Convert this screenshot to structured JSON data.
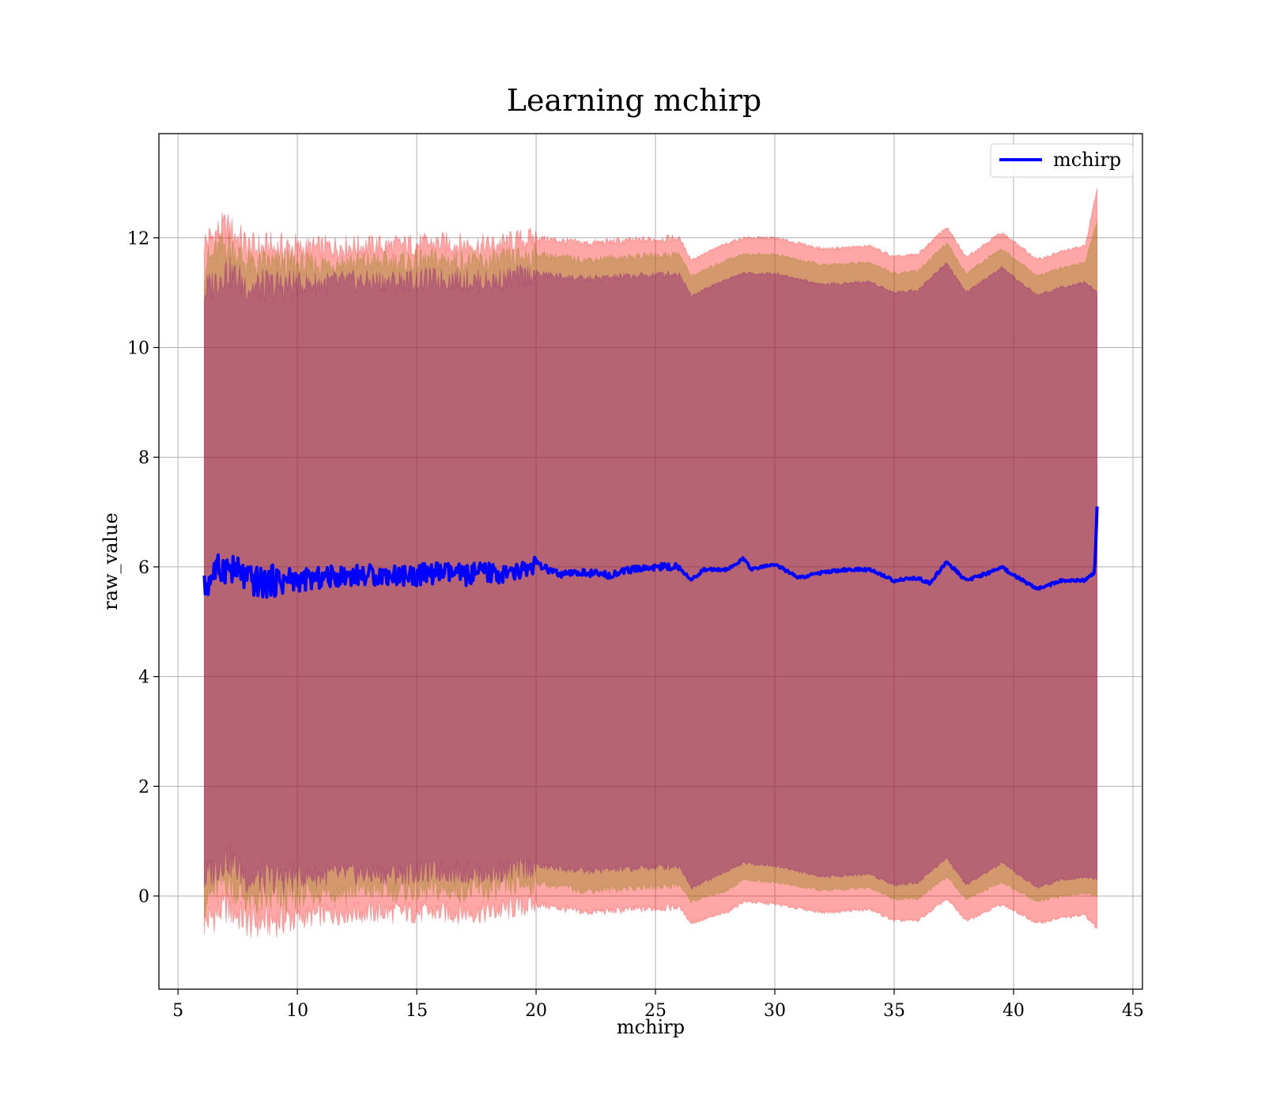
{
  "chart_data": {
    "type": "line",
    "title": "Learning mchirp",
    "xlabel": "mchirp",
    "ylabel": "raw_value",
    "xlim": [
      4.2,
      45.4
    ],
    "ylim": [
      -1.7,
      13.9
    ],
    "xticks": [
      5,
      10,
      15,
      20,
      25,
      30,
      35,
      40,
      45
    ],
    "yticks": [
      0,
      2,
      4,
      6,
      8,
      10,
      12
    ],
    "grid": true,
    "legend_position": "top-right",
    "x_range": [
      6.1,
      43.5
    ],
    "series": [
      {
        "name": "mchirp",
        "kind": "line",
        "color": "#0000ff",
        "x": [
          6.1,
          6.5,
          7.0,
          7.5,
          8.0,
          8.5,
          9.0,
          10.0,
          11.0,
          12.0,
          13.0,
          14.0,
          15.0,
          16.0,
          17.0,
          18.0,
          19.0,
          20.0,
          21.0,
          22.0,
          23.0,
          24.0,
          25.0,
          26.0,
          26.5,
          27.0,
          28.0,
          28.7,
          29.0,
          30.0,
          31.0,
          32.0,
          33.0,
          34.0,
          35.0,
          36.0,
          36.5,
          37.2,
          38.0,
          39.0,
          39.5,
          40.0,
          41.0,
          42.0,
          43.0,
          43.4,
          43.5
        ],
        "values": [
          5.6,
          5.9,
          6.0,
          5.9,
          5.75,
          5.7,
          5.75,
          5.75,
          5.8,
          5.85,
          5.85,
          5.85,
          5.85,
          5.9,
          5.85,
          5.9,
          5.85,
          6.05,
          5.85,
          5.9,
          5.85,
          5.95,
          6.0,
          6.0,
          5.75,
          5.95,
          5.95,
          6.15,
          5.95,
          6.05,
          5.8,
          5.9,
          5.95,
          5.95,
          5.75,
          5.8,
          5.7,
          6.1,
          5.75,
          5.9,
          6.0,
          5.85,
          5.6,
          5.75,
          5.75,
          5.9,
          7.1
        ]
      },
      {
        "name": "",
        "kind": "band",
        "color": "#ff0000",
        "x": [
          6.1,
          7.0,
          8.0,
          10.0,
          12.0,
          14.0,
          16.0,
          18.0,
          20.0,
          22.0,
          24.0,
          26.0,
          26.5,
          28.0,
          28.7,
          30.0,
          32.0,
          34.0,
          35.0,
          36.0,
          37.2,
          38.0,
          39.5,
          41.0,
          42.0,
          43.0,
          43.5
        ],
        "upper": [
          11.9,
          12.2,
          11.8,
          11.8,
          11.85,
          11.85,
          11.9,
          11.85,
          12.0,
          11.9,
          11.95,
          12.0,
          11.6,
          11.9,
          12.0,
          12.0,
          11.8,
          11.85,
          11.65,
          11.7,
          12.2,
          11.65,
          12.1,
          11.6,
          11.75,
          11.85,
          12.9
        ],
        "lower": [
          -0.5,
          -0.2,
          -0.5,
          -0.4,
          -0.3,
          -0.3,
          -0.3,
          -0.3,
          -0.15,
          -0.3,
          -0.25,
          -0.2,
          -0.5,
          -0.3,
          -0.1,
          -0.15,
          -0.3,
          -0.25,
          -0.45,
          -0.45,
          -0.05,
          -0.45,
          -0.15,
          -0.5,
          -0.4,
          -0.35,
          -0.6
        ]
      },
      {
        "name": "",
        "kind": "band",
        "color": "#808000",
        "x": [
          6.1,
          7.0,
          8.0,
          10.0,
          12.0,
          14.0,
          16.0,
          18.0,
          20.0,
          22.0,
          24.0,
          26.0,
          26.5,
          28.0,
          28.7,
          30.0,
          32.0,
          34.0,
          35.0,
          36.0,
          37.2,
          38.0,
          39.5,
          41.0,
          42.0,
          43.0,
          43.5
        ],
        "upper": [
          11.5,
          11.9,
          11.5,
          11.5,
          11.55,
          11.55,
          11.6,
          11.55,
          11.7,
          11.6,
          11.65,
          11.7,
          11.3,
          11.6,
          11.7,
          11.7,
          11.5,
          11.55,
          11.35,
          11.4,
          11.9,
          11.35,
          11.8,
          11.3,
          11.45,
          11.55,
          12.3
        ],
        "lower": [
          -0.1,
          0.3,
          -0.1,
          0.0,
          0.1,
          0.1,
          0.1,
          0.1,
          0.25,
          0.1,
          0.15,
          0.2,
          -0.1,
          0.1,
          0.3,
          0.25,
          0.1,
          0.15,
          -0.05,
          -0.05,
          0.35,
          -0.05,
          0.25,
          -0.1,
          0.0,
          0.05,
          0.0
        ]
      },
      {
        "name": "",
        "kind": "band",
        "color": "#800080",
        "x": [
          6.1,
          7.0,
          8.0,
          10.0,
          12.0,
          14.0,
          16.0,
          18.0,
          20.0,
          22.0,
          24.0,
          26.0,
          26.5,
          28.0,
          28.7,
          30.0,
          32.0,
          34.0,
          35.0,
          36.0,
          37.2,
          38.0,
          39.5,
          41.0,
          42.0,
          43.0,
          43.5
        ],
        "upper": [
          11.0,
          11.4,
          11.1,
          11.15,
          11.2,
          11.2,
          11.25,
          11.2,
          11.35,
          11.25,
          11.3,
          11.35,
          10.95,
          11.25,
          11.35,
          11.35,
          11.15,
          11.2,
          11.0,
          11.05,
          11.55,
          11.0,
          11.45,
          10.95,
          11.1,
          11.2,
          11.0
        ],
        "lower": [
          0.3,
          0.7,
          0.3,
          0.35,
          0.4,
          0.4,
          0.45,
          0.4,
          0.55,
          0.45,
          0.5,
          0.55,
          0.15,
          0.45,
          0.6,
          0.55,
          0.35,
          0.4,
          0.2,
          0.25,
          0.7,
          0.2,
          0.6,
          0.15,
          0.3,
          0.35,
          0.3
        ]
      }
    ]
  }
}
